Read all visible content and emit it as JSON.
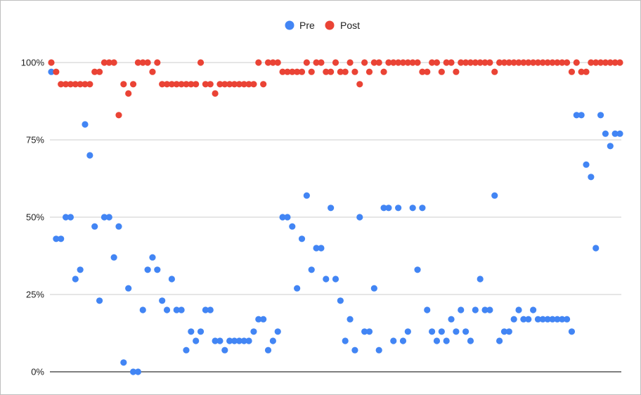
{
  "chart_data": {
    "type": "scatter",
    "title": "",
    "xlabel": "",
    "ylabel": "",
    "ylim": [
      0,
      100
    ],
    "yticks": [
      {
        "value": 0,
        "label": "0%"
      },
      {
        "value": 25,
        "label": "25%"
      },
      {
        "value": 50,
        "label": "50%"
      },
      {
        "value": 75,
        "label": "75%"
      },
      {
        "value": 100,
        "label": "100%"
      }
    ],
    "grid": true,
    "legend_position": "top-center",
    "x": [
      1,
      2,
      3,
      4,
      5,
      6,
      7,
      8,
      9,
      10,
      11,
      12,
      13,
      14,
      15,
      16,
      17,
      18,
      19,
      20,
      21,
      22,
      23,
      24,
      25,
      26,
      27,
      28,
      29,
      30,
      31,
      32,
      33,
      34,
      35,
      36,
      37,
      38,
      39,
      40,
      41,
      42,
      43,
      44,
      45,
      46,
      47,
      48,
      49,
      50,
      51,
      52,
      53,
      54,
      55,
      56,
      57,
      58,
      59,
      60,
      61,
      62,
      63,
      64,
      65,
      66,
      67,
      68,
      69,
      70,
      71,
      72,
      73,
      74,
      75,
      76,
      77,
      78,
      79,
      80,
      81,
      82,
      83,
      84,
      85,
      86,
      87,
      88,
      89,
      90,
      91,
      92,
      93,
      94,
      95,
      96,
      97,
      98,
      99,
      100,
      101,
      102,
      103,
      104,
      105,
      106,
      107,
      108,
      109,
      110,
      111,
      112,
      113,
      114,
      115,
      116,
      117,
      118,
      119
    ],
    "series": [
      {
        "name": "Pre",
        "color": "#4285f4",
        "values": [
          97,
          43,
          43,
          50,
          50,
          30,
          33,
          80,
          70,
          47,
          23,
          50,
          50,
          37,
          47,
          3,
          27,
          0,
          0,
          20,
          33,
          37,
          33,
          23,
          20,
          30,
          20,
          20,
          7,
          13,
          10,
          13,
          20,
          20,
          10,
          10,
          7,
          10,
          10,
          10,
          10,
          10,
          13,
          17,
          17,
          7,
          10,
          13,
          50,
          50,
          47,
          27,
          43,
          57,
          33,
          40,
          40,
          30,
          53,
          30,
          23,
          10,
          17,
          7,
          50,
          13,
          13,
          27,
          7,
          53,
          53,
          10,
          53,
          10,
          13,
          53,
          33,
          53,
          20,
          13,
          10,
          13,
          10,
          17,
          13,
          20,
          13,
          10,
          20,
          30,
          20,
          20,
          57,
          10,
          13,
          13,
          17,
          20,
          17,
          17,
          20,
          17,
          17,
          17,
          17,
          17,
          17,
          17,
          13,
          83,
          83,
          67,
          63,
          40,
          83,
          77,
          73,
          77,
          77
        ]
      },
      {
        "name": "Post",
        "color": "#ea4335",
        "values": [
          100,
          97,
          93,
          93,
          93,
          93,
          93,
          93,
          93,
          97,
          97,
          100,
          100,
          100,
          83,
          93,
          90,
          93,
          100,
          100,
          100,
          97,
          100,
          93,
          93,
          93,
          93,
          93,
          93,
          93,
          93,
          100,
          93,
          93,
          90,
          93,
          93,
          93,
          93,
          93,
          93,
          93,
          93,
          100,
          93,
          100,
          100,
          100,
          97,
          97,
          97,
          97,
          97,
          100,
          97,
          100,
          100,
          97,
          97,
          100,
          97,
          97,
          100,
          97,
          93,
          100,
          97,
          100,
          100,
          97,
          100,
          100,
          100,
          100,
          100,
          100,
          100,
          97,
          97,
          100,
          100,
          97,
          100,
          100,
          97,
          100,
          100,
          100,
          100,
          100,
          100,
          100,
          97,
          100,
          100,
          100,
          100,
          100,
          100,
          100,
          100,
          100,
          100,
          100,
          100,
          100,
          100,
          100,
          97,
          100,
          97,
          97,
          100,
          100,
          100,
          100,
          100,
          100,
          100
        ]
      }
    ]
  }
}
